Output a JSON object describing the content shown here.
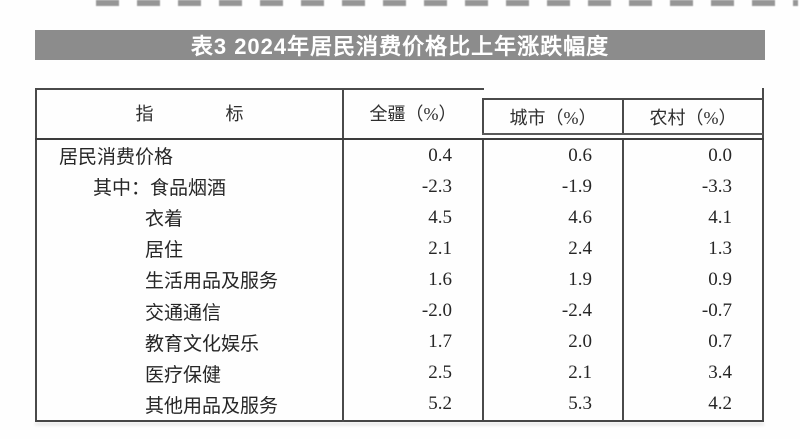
{
  "top_strip": {
    "description_icon": "cropped-text-fragments"
  },
  "title_bar": {
    "text": "表3 2024年居民消费价格比上年涨跌幅度",
    "bg_color": "#8c8c8c",
    "text_color": "#ffffff"
  },
  "table": {
    "border_color": "#4a4a4a",
    "columns": {
      "indicator": "指标",
      "indicator_display": "指　　　　标",
      "region": "全疆（%）",
      "city": "城市（%）",
      "rural": "农村（%）"
    },
    "rows": [
      {
        "label": "居民消费价格",
        "indent": 0,
        "values": [
          "0.4",
          "0.6",
          "0.0"
        ]
      },
      {
        "label": "其中：食品烟酒",
        "indent": 1,
        "values": [
          "-2.3",
          "-1.9",
          "-3.3"
        ]
      },
      {
        "label": "衣着",
        "indent": 2,
        "values": [
          "4.5",
          "4.6",
          "4.1"
        ]
      },
      {
        "label": "居住",
        "indent": 2,
        "values": [
          "2.1",
          "2.4",
          "1.3"
        ]
      },
      {
        "label": "生活用品及服务",
        "indent": 2,
        "values": [
          "1.6",
          "1.9",
          "0.9"
        ]
      },
      {
        "label": "交通通信",
        "indent": 2,
        "values": [
          "-2.0",
          "-2.4",
          "-0.7"
        ]
      },
      {
        "label": "教育文化娱乐",
        "indent": 2,
        "values": [
          "1.7",
          "2.0",
          "0.7"
        ]
      },
      {
        "label": "医疗保健",
        "indent": 2,
        "values": [
          "2.5",
          "2.1",
          "3.4"
        ]
      },
      {
        "label": "其他用品及服务",
        "indent": 2,
        "values": [
          "5.2",
          "5.3",
          "4.2"
        ]
      }
    ]
  }
}
